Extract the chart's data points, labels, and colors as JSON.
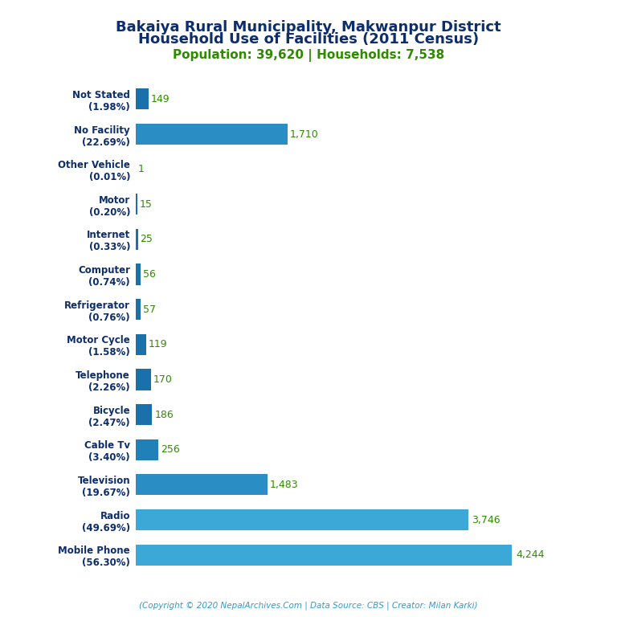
{
  "title_line1": "Bakaiya Rural Municipality, Makwanpur District",
  "title_line2": "Household Use of Facilities (2011 Census)",
  "subtitle": "Population: 39,620 | Households: 7,538",
  "copyright": "(Copyright © 2020 NepalArchives.Com | Data Source: CBS | Creator: Milan Karki)",
  "categories": [
    "Not Stated\n(1.98%)",
    "No Facility\n(22.69%)",
    "Other Vehicle\n(0.01%)",
    "Motor\n(0.20%)",
    "Internet\n(0.33%)",
    "Computer\n(0.74%)",
    "Refrigerator\n(0.76%)",
    "Motor Cycle\n(1.58%)",
    "Telephone\n(2.26%)",
    "Bicycle\n(2.47%)",
    "Cable Tv\n(3.40%)",
    "Television\n(19.67%)",
    "Radio\n(49.69%)",
    "Mobile Phone\n(56.30%)"
  ],
  "values": [
    149,
    1710,
    1,
    15,
    25,
    56,
    57,
    119,
    170,
    186,
    256,
    1483,
    3746,
    4244
  ],
  "value_labels": [
    "149",
    "1,710",
    "1",
    "15",
    "25",
    "56",
    "57",
    "119",
    "170",
    "186",
    "256",
    "1,483",
    "3,746",
    "4,244"
  ],
  "title_color": "#0d2d6b",
  "subtitle_color": "#2e8b00",
  "label_color": "#0d2d6b",
  "value_color": "#2e8b00",
  "copyright_color": "#3399cc",
  "background_color": "#ffffff",
  "bar_color_small": "#1a70aa",
  "bar_color_medium": "#2080b8",
  "bar_color_large": "#2a8ec5",
  "bar_color_xlarge": "#3ba8d8",
  "xlim": 4800,
  "figsize": [
    7.68,
    7.68
  ],
  "dpi": 100
}
